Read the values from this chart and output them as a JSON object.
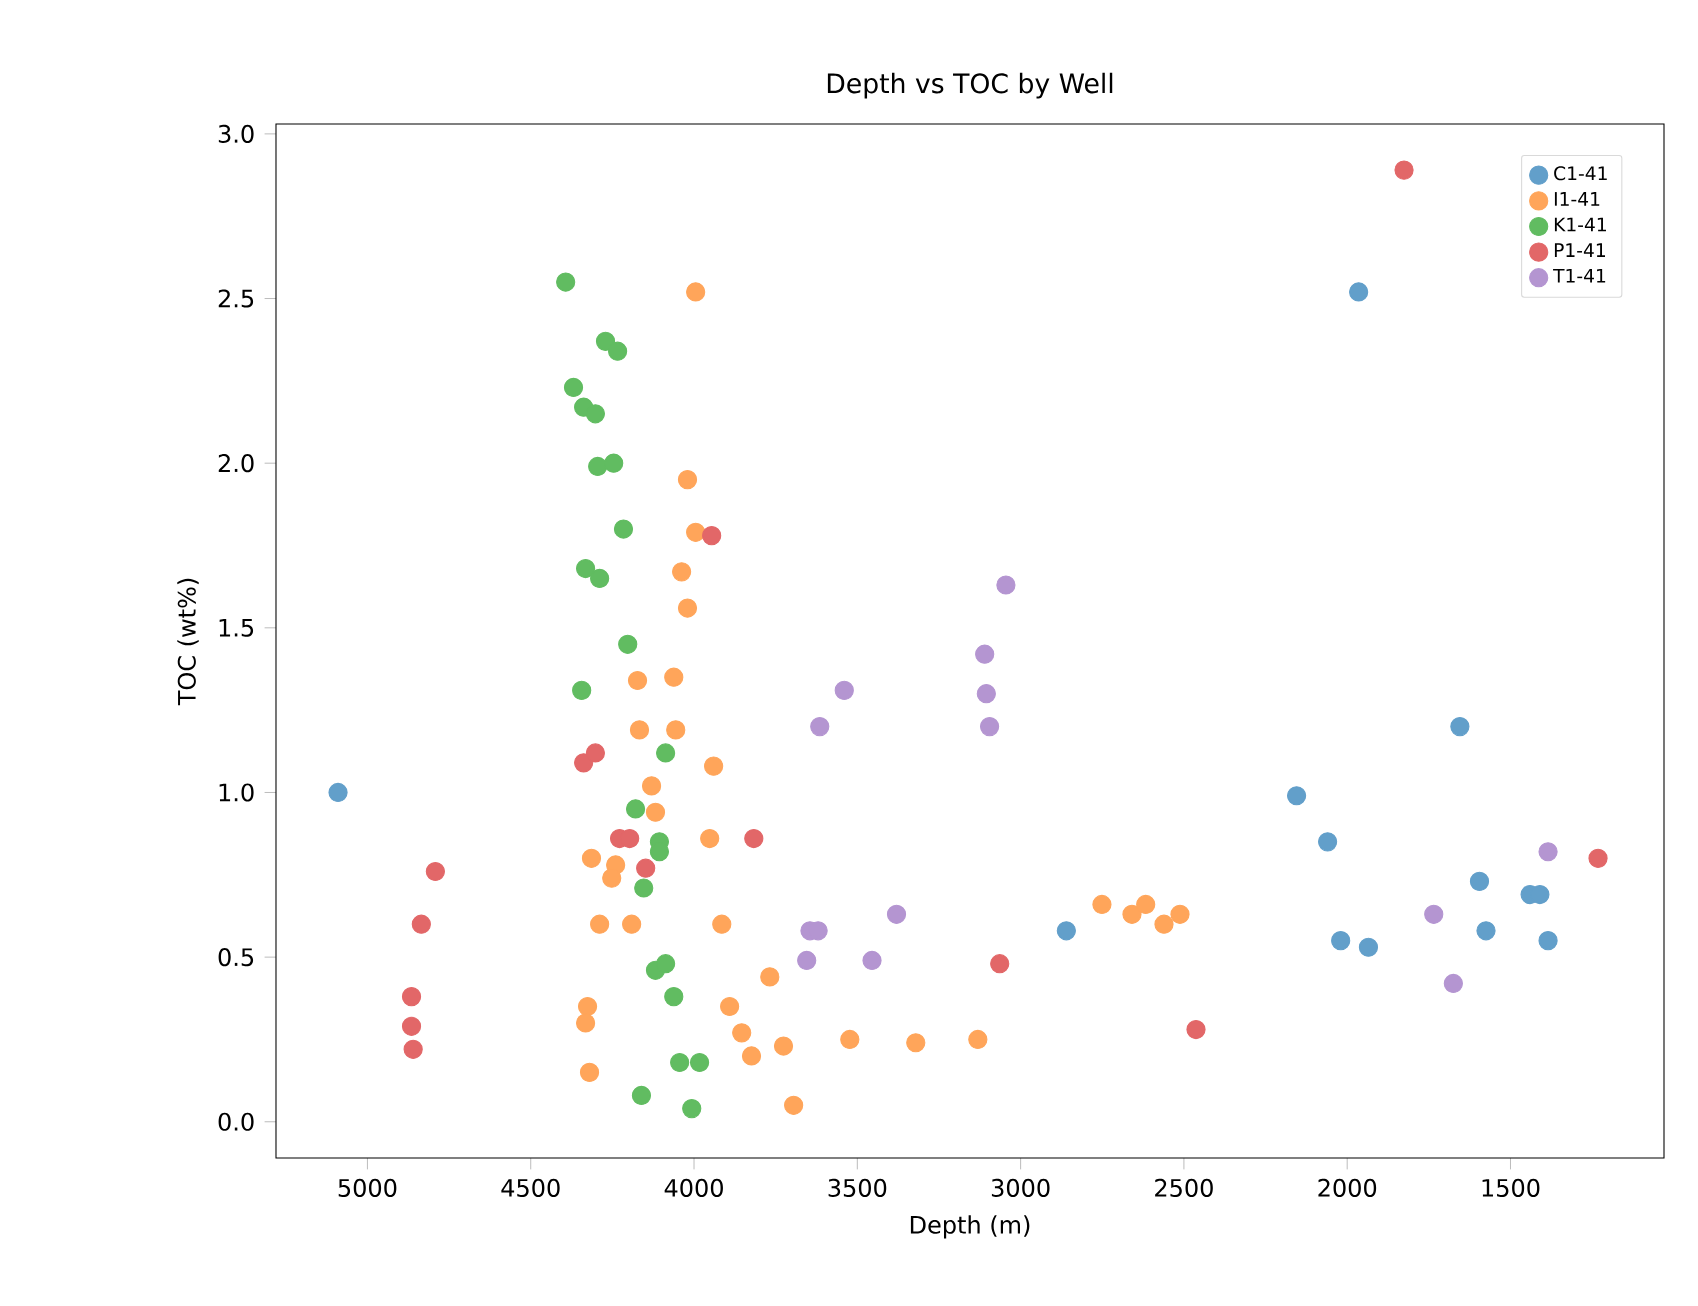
{
  "chart_data": {
    "type": "scatter",
    "title": "Depth vs TOC by Well",
    "xlabel": "Depth (m)",
    "ylabel": "TOC (wt%)",
    "xlim": [
      5280,
      1030
    ],
    "ylim": [
      -0.11,
      3.03
    ],
    "xticks": [
      5000,
      4500,
      4000,
      3500,
      3000,
      2500,
      2000,
      1500
    ],
    "yticks": [
      {
        "value": 0,
        "label": "0.0"
      },
      {
        "value": 0.5,
        "label": "0.5"
      },
      {
        "value": 1,
        "label": "1.0"
      },
      {
        "value": 1.5,
        "label": "1.5"
      },
      {
        "value": 2,
        "label": "2.0"
      },
      {
        "value": 2.5,
        "label": "2.5"
      },
      {
        "value": 3,
        "label": "3.0"
      }
    ],
    "grid": false,
    "legend": "top right",
    "marker": "circle",
    "series": [
      {
        "name": "C1-41",
        "color": "#629fca",
        "x": [
          5090,
          1965,
          2860,
          1655,
          2155,
          2060,
          1595,
          2020,
          1935,
          1575,
          1440,
          1410,
          1385
        ],
        "values": [
          1.0,
          2.52,
          0.58,
          1.2,
          0.99,
          0.85,
          0.73,
          0.55,
          0.53,
          0.58,
          0.69,
          0.69,
          0.55
        ]
      },
      {
        "name": "I1-41",
        "color": "#ffa55a",
        "x": [
          3995,
          4020,
          3995,
          4038,
          4020,
          4173,
          4062,
          4167,
          4056,
          3940,
          4130,
          4118,
          3952,
          4314,
          4240,
          4252,
          4289,
          4191,
          3915,
          3768,
          4326,
          4332,
          3891,
          3854,
          3824,
          3726,
          3523,
          4320,
          3695,
          3321,
          3131,
          2751,
          2659,
          2617,
          2561,
          2512
        ],
        "values": [
          2.52,
          1.95,
          1.79,
          1.67,
          1.56,
          1.34,
          1.35,
          1.19,
          1.19,
          1.08,
          1.02,
          0.94,
          0.86,
          0.8,
          0.78,
          0.74,
          0.6,
          0.6,
          0.6,
          0.44,
          0.35,
          0.3,
          0.35,
          0.27,
          0.2,
          0.23,
          0.25,
          0.15,
          0.05,
          0.24,
          0.25,
          0.66,
          0.63,
          0.66,
          0.6,
          0.63
        ]
      },
      {
        "name": "K1-41",
        "color": "#61bc61",
        "x": [
          4393,
          4271,
          4234,
          4369,
          4338,
          4302,
          4295,
          4246,
          4216,
          4332,
          4289,
          4203,
          4344,
          4087,
          4179,
          4106,
          4106,
          4154,
          4118,
          4087,
          4062,
          4044,
          3983,
          4161,
          4007
        ],
        "values": [
          2.55,
          2.37,
          2.34,
          2.23,
          2.17,
          2.15,
          1.99,
          2.0,
          1.8,
          1.68,
          1.65,
          1.45,
          1.31,
          1.12,
          0.95,
          0.85,
          0.82,
          0.71,
          0.46,
          0.48,
          0.38,
          0.18,
          0.18,
          0.08,
          0.04
        ]
      },
      {
        "name": "P1-41",
        "color": "#e26768",
        "x": [
          1232,
          1826,
          3064,
          2463,
          3946,
          4338,
          4302,
          4228,
          4197,
          4148,
          3817,
          4792,
          4835,
          4865,
          4865,
          4860
        ],
        "values": [
          0.8,
          2.89,
          0.48,
          0.28,
          1.78,
          1.09,
          1.12,
          0.86,
          0.86,
          0.77,
          0.86,
          0.76,
          0.6,
          0.38,
          0.29,
          0.22
        ]
      },
      {
        "name": "T1-41",
        "color": "#b495d1",
        "x": [
          3045,
          3110,
          3105,
          3095,
          3540,
          3615,
          3380,
          3455,
          3645,
          3620,
          3655,
          1735,
          1675,
          1385
        ],
        "values": [
          1.63,
          1.42,
          1.3,
          1.2,
          1.31,
          1.2,
          0.63,
          0.49,
          0.58,
          0.58,
          0.49,
          0.63,
          0.42,
          0.82
        ]
      }
    ]
  }
}
